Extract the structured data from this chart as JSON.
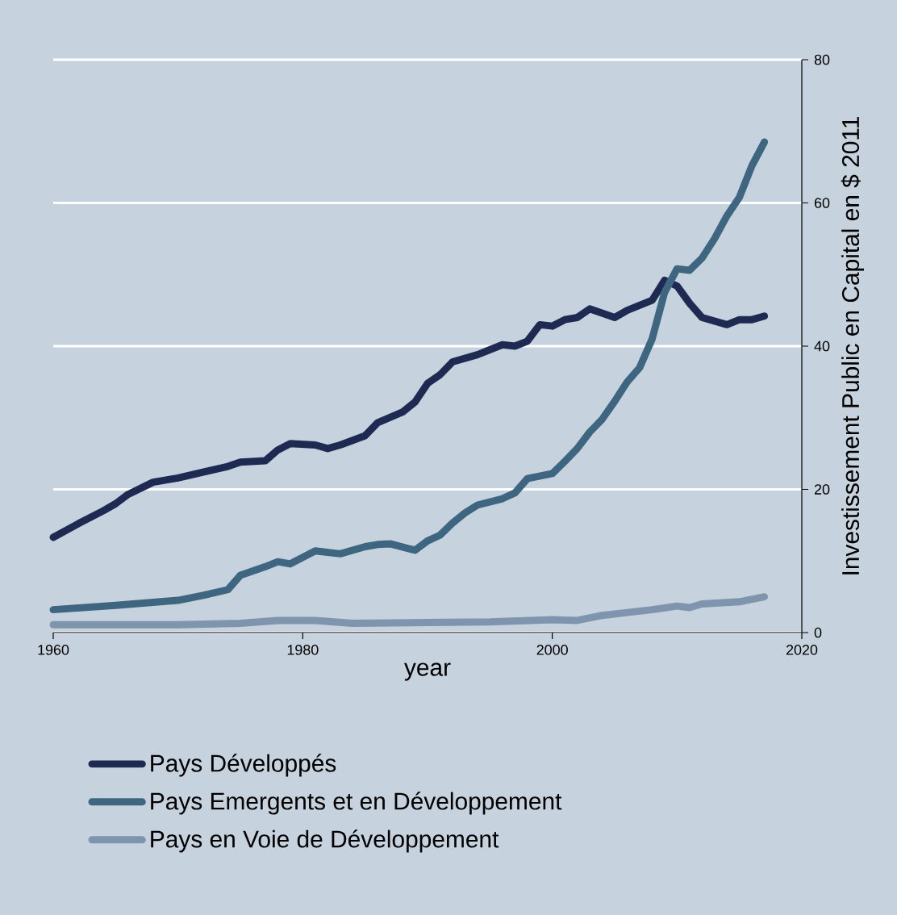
{
  "chart_data": {
    "type": "line",
    "xlabel": "year",
    "ylabel": "Investissement Public en Capital en $ 2011",
    "xlim": [
      1960,
      2020
    ],
    "ylim": [
      0,
      80
    ],
    "xticks": [
      1960,
      1980,
      2000,
      2020
    ],
    "yticks": [
      0,
      20,
      40,
      60,
      80
    ],
    "grid": "y",
    "legend": "bottom",
    "line_style": "solid",
    "marker": "none",
    "series": [
      {
        "name": "Pays Développés",
        "color": "#1f2a52",
        "x": [
          1960,
          1962,
          1964,
          1965,
          1966,
          1968,
          1970,
          1973,
          1974,
          1975,
          1977,
          1978,
          1979,
          1981,
          1982,
          1983,
          1985,
          1986,
          1988,
          1989,
          1990,
          1991,
          1992,
          1994,
          1996,
          1997,
          1998,
          1999,
          2000,
          2001,
          2002,
          2003,
          2005,
          2006,
          2008,
          2009,
          2010,
          2011,
          2012,
          2014,
          2015,
          2016,
          2017
        ],
        "values": [
          13.3,
          15.2,
          17,
          18,
          19.3,
          21,
          21.6,
          22.8,
          23.2,
          23.8,
          24,
          25.5,
          26.4,
          26.2,
          25.7,
          26.2,
          27.5,
          29.3,
          30.8,
          32.2,
          34.8,
          36,
          37.8,
          38.8,
          40.2,
          40,
          40.7,
          43,
          42.8,
          43.7,
          44,
          45.2,
          44,
          45,
          46.4,
          49.2,
          48.4,
          46,
          44,
          43,
          43.7,
          43.7,
          44.2
        ]
      },
      {
        "name": "Pays Emergents et en Développement",
        "color": "#3e6680",
        "x": [
          1960,
          1965,
          1970,
          1972,
          1974,
          1975,
          1977,
          1978,
          1979,
          1980,
          1981,
          1983,
          1985,
          1986,
          1987,
          1989,
          1990,
          1991,
          1992,
          1993,
          1994,
          1996,
          1997,
          1998,
          2000,
          2001,
          2002,
          2003,
          2004,
          2005,
          2006,
          2007,
          2008,
          2009,
          2010,
          2011,
          2012,
          2013,
          2014,
          2015,
          2016,
          2017
        ],
        "values": [
          3.2,
          3.8,
          4.5,
          5.2,
          6,
          8,
          9.2,
          9.9,
          9.6,
          10.5,
          11.4,
          11,
          12,
          12.3,
          12.4,
          11.5,
          12.8,
          13.6,
          15.3,
          16.7,
          17.8,
          18.7,
          19.5,
          21.5,
          22.2,
          23.9,
          25.7,
          28,
          29.8,
          32.3,
          35,
          37,
          41,
          47.5,
          50.8,
          50.6,
          52.3,
          55,
          58.2,
          60.8,
          65.2,
          68.5
        ]
      },
      {
        "name": "Pays en Voie de Développement",
        "color": "#7f95ad",
        "x": [
          1960,
          1970,
          1975,
          1978,
          1981,
          1984,
          1990,
          1995,
          2000,
          2002,
          2004,
          2006,
          2008,
          2010,
          2011,
          2012,
          2015,
          2017
        ],
        "values": [
          1.1,
          1.1,
          1.3,
          1.7,
          1.7,
          1.3,
          1.4,
          1.5,
          1.8,
          1.7,
          2.4,
          2.8,
          3.2,
          3.7,
          3.5,
          4,
          4.3,
          5
        ]
      }
    ]
  }
}
